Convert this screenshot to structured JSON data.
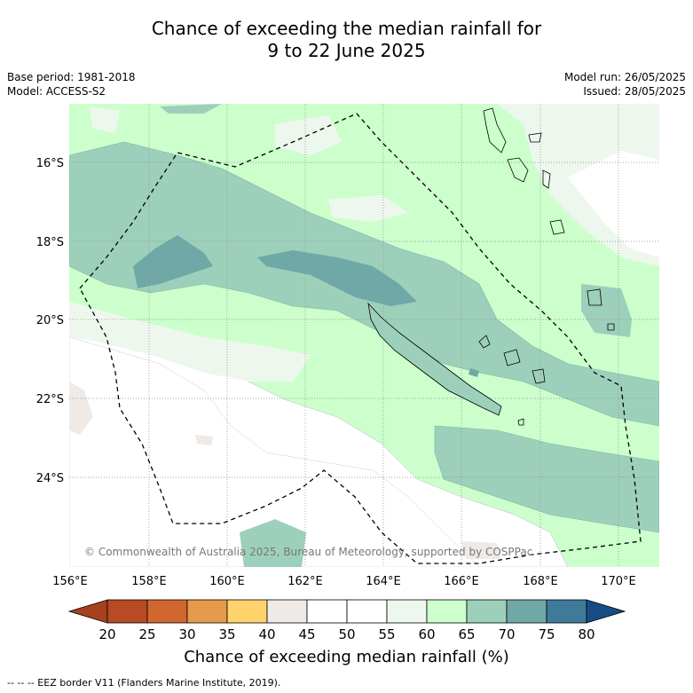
{
  "title_line1": "Chance of exceeding the median rainfall for",
  "title_line2": "9 to 22 June 2025",
  "base_period": "Base period: 1981-2018",
  "model": "Model: ACCESS-S2",
  "model_run": "Model run: 26/05/2025",
  "issued": "Issued: 28/05/2025",
  "lat_labels": [
    "16°S",
    "18°S",
    "20°S",
    "22°S",
    "24°S"
  ],
  "lon_labels": [
    "156°E",
    "158°E",
    "160°E",
    "162°E",
    "164°E",
    "166°E",
    "168°E",
    "170°E"
  ],
  "copyright": "© Commonwealth of Australia 2025, Bureau of Meteorology, supported by COSPPac",
  "colorbar": {
    "ticks": [
      "20",
      "25",
      "30",
      "35",
      "40",
      "45",
      "50",
      "55",
      "60",
      "65",
      "70",
      "75",
      "80"
    ],
    "colors": [
      "#a6401f",
      "#b84a24",
      "#d1662f",
      "#e69a4c",
      "#ffd36b",
      "#efeae6",
      "#ffffff",
      "#ffffff",
      "#eef7ee",
      "#ccffcc",
      "#9dd0bb",
      "#70a8a8",
      "#3f7a98",
      "#174d86"
    ],
    "title": "Chance of exceeding median rainfall (%)"
  },
  "legend_text": "-- -- -- EEZ border V11 (Flanders Marine Institute, 2019)."
}
